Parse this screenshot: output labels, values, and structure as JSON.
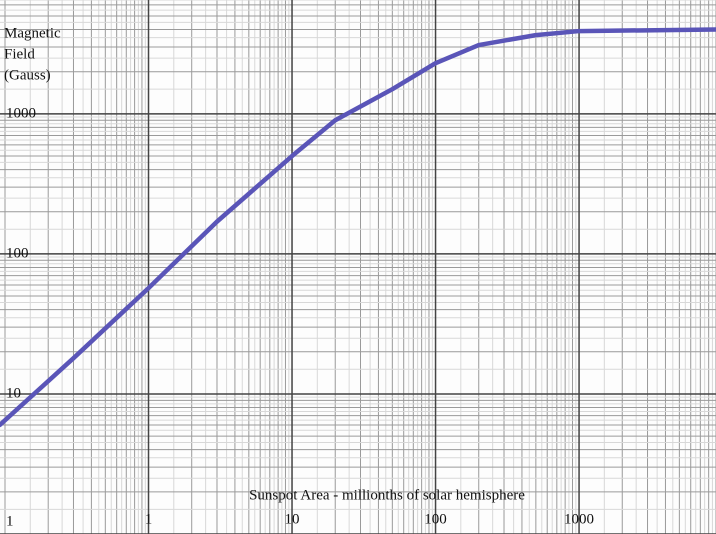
{
  "chart_data": {
    "type": "line",
    "y_label_lines": [
      "Magnetic",
      "Field",
      "(Gauss)"
    ],
    "x_label": "Sunspot Area - millionths of solar hemisphere",
    "x": [
      0.092,
      0.3,
      1,
      3,
      10,
      20,
      50,
      100,
      200,
      500,
      1000,
      9000
    ],
    "series": [
      {
        "name": "Magnetic Field",
        "color": "#5a55b8",
        "values": [
          6,
          18,
          57,
          170,
          500,
          900,
          1500,
          2300,
          3100,
          3650,
          3900,
          4000
        ]
      }
    ],
    "xlim": [
      0.1,
      9000
    ],
    "ylim": [
      1,
      6500
    ],
    "xticks": [
      1,
      10,
      100,
      1000
    ],
    "yticks": [
      1,
      10,
      100,
      1000
    ],
    "log_scale": true,
    "grid": true
  }
}
